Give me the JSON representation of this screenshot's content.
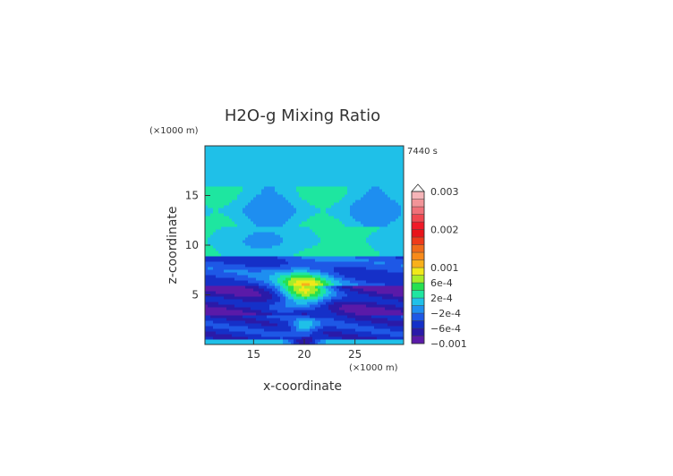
{
  "chart_data": {
    "type": "heatmap",
    "title": "H2O-g Mixing Ratio",
    "time_label": "7440 s",
    "xlabel": "x-coordinate",
    "ylabel": "z-coordinate",
    "x_unit": "(×1000 m)",
    "y_unit": "(×1000 m)",
    "xlim": [
      10.2,
      29.8
    ],
    "ylim": [
      0,
      20
    ],
    "x_ticks": [
      {
        "value": 15,
        "label": "15"
      },
      {
        "value": 20,
        "label": "20"
      },
      {
        "value": 25,
        "label": "25"
      }
    ],
    "y_ticks": [
      {
        "value": 5,
        "label": "5"
      },
      {
        "value": 10,
        "label": "10"
      },
      {
        "value": 15,
        "label": "15"
      }
    ],
    "colorbar": {
      "levels": [
        -0.001,
        -0.0008,
        -0.0006,
        -0.0004,
        -0.0002,
        0,
        0.0002,
        0.0004,
        0.0006,
        0.0008,
        0.001,
        0.0012,
        0.0014,
        0.0016,
        0.0018,
        0.002,
        0.0022,
        0.0024,
        0.0026,
        0.0028,
        0.003
      ],
      "colors": [
        "#5a1aa8",
        "#2a1aa8",
        "#1530c8",
        "#1e58e6",
        "#1e8ef0",
        "#1fc0e8",
        "#1ee6a0",
        "#26e050",
        "#a8ec28",
        "#f0e81a",
        "#f8b01a",
        "#f88a1a",
        "#f06a1a",
        "#ee3a1a",
        "#e8141a",
        "#f01a28",
        "#f04850",
        "#f07078",
        "#f29498",
        "#f5b4b8"
      ],
      "tick_labels": [
        {
          "value": 0.003,
          "label": "0.003"
        },
        {
          "value": 0.002,
          "label": "0.002"
        },
        {
          "value": 0.001,
          "label": "0.001"
        },
        {
          "value": 0.0006,
          "label": "6e-4"
        },
        {
          "value": 0.0002,
          "label": "2e-4"
        },
        {
          "value": -0.0002,
          "label": "−2e-4"
        },
        {
          "value": -0.0006,
          "label": "−6e-4"
        },
        {
          "value": -0.001,
          "label": "−0.001"
        }
      ]
    }
  }
}
